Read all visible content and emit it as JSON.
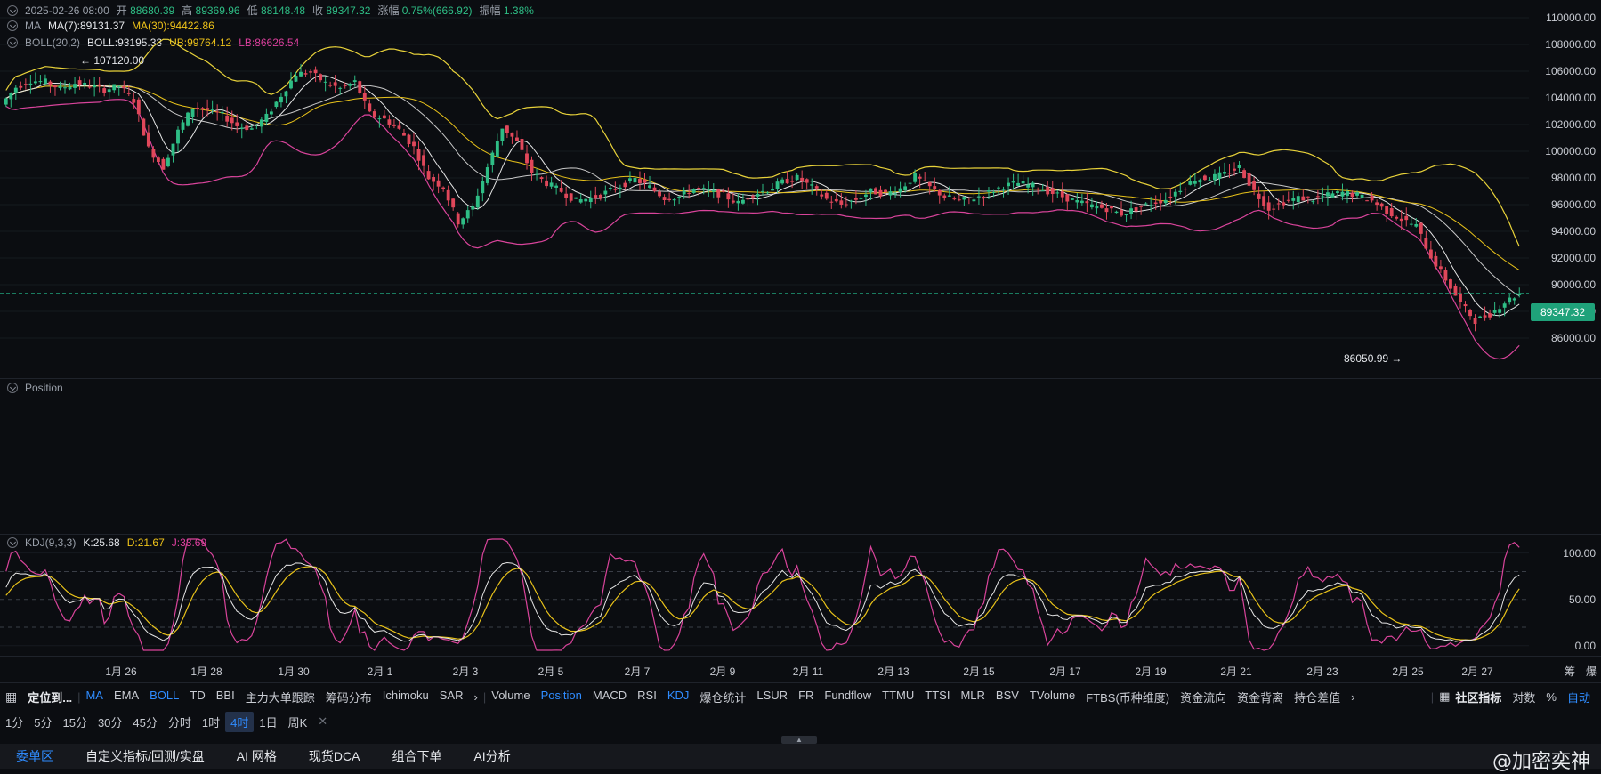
{
  "ohlc": {
    "datetime": "2025-02-26 08:00",
    "open_label": "开",
    "open": "88680.39",
    "high_label": "高",
    "high": "89369.96",
    "low_label": "低",
    "low": "88148.48",
    "close_label": "收",
    "close": "89347.32",
    "change_label": "涨幅",
    "change": "0.75%(666.92)",
    "amp_label": "振幅",
    "amp": "1.38%"
  },
  "ma": {
    "label": "MA",
    "ma7": "MA(7):89131.37",
    "ma30": "MA(30):94422.86"
  },
  "boll": {
    "label": "BOLL(20,2)",
    "mid": "BOLL:93195.33",
    "ub": "UB:99764.12",
    "lb": "LB:86626.54"
  },
  "price_axis": [
    "110000.00",
    "108000.00",
    "106000.00",
    "104000.00",
    "102000.00",
    "100000.00",
    "98000.00",
    "96000.00",
    "94000.00",
    "92000.00",
    "90000.00",
    "88000.00",
    "86000.00"
  ],
  "current_price": "89347.32",
  "high_marker": "107120.00",
  "low_marker": "86050.99",
  "position_pane": {
    "label": "Position"
  },
  "kdj": {
    "label": "KDJ(9,3,3)",
    "k": "K:25.68",
    "d": "D:21.67",
    "j": "J:33.69",
    "axis": [
      "100.00",
      "50.00",
      "0.00"
    ]
  },
  "x_axis": [
    "1月 26",
    "1月 28",
    "1月 30",
    "2月 1",
    "2月 3",
    "2月 5",
    "2月 7",
    "2月 9",
    "2月 11",
    "2月 13",
    "2月 15",
    "2月 17",
    "2月 19",
    "2月 21",
    "2月 23",
    "2月 25",
    "2月 27"
  ],
  "axis_corner": [
    "筹",
    "爆"
  ],
  "indicator_bar": {
    "locate": "定位到...",
    "main_items": [
      "MA",
      "EMA",
      "BOLL",
      "TD",
      "BBI",
      "主力大单跟踪",
      "筹码分布",
      "Ichimoku",
      "SAR"
    ],
    "sub_items": [
      "Volume",
      "Position",
      "MACD",
      "RSI",
      "KDJ",
      "爆仓统计",
      "LSUR",
      "FR",
      "Fundflow",
      "TTMU",
      "TTSI",
      "MLR",
      "BSV",
      "TVolume",
      "FTBS(币种维度)",
      "资金流向",
      "资金背离",
      "持仓差值"
    ],
    "right": [
      "社区指标",
      "对数",
      "%",
      "自动"
    ]
  },
  "intervals": [
    "1分",
    "5分",
    "15分",
    "30分",
    "45分",
    "分时",
    "1时",
    "4时",
    "1日",
    "周K"
  ],
  "active_interval": "4时",
  "bottom_tabs": [
    "委单区",
    "自定义指标/回测/实盘",
    "AI 网格",
    "现货DCA",
    "组合下单",
    "AI分析"
  ],
  "watermark": "@加密奕神",
  "chart_data": {
    "type": "candlestick",
    "close_series": [
      103500,
      104800,
      105300,
      105200,
      104700,
      105100,
      104900,
      104600,
      104900,
      103800,
      100200,
      98800,
      101500,
      103300,
      103100,
      102700,
      101900,
      101700,
      102600,
      104200,
      105800,
      105900,
      105100,
      104700,
      105200,
      102800,
      102400,
      101600,
      100300,
      98000,
      97300,
      94700,
      95800,
      98800,
      101800,
      100700,
      98400,
      97600,
      97000,
      96300,
      96500,
      96900,
      97400,
      97900,
      97300,
      96500,
      96600,
      97200,
      97000,
      96700,
      96100,
      96800,
      97100,
      97700,
      98000,
      97300,
      96400,
      96000,
      96400,
      97000,
      96800,
      97200,
      98100,
      97300,
      96600,
      96300,
      96500,
      96900,
      97400,
      97600,
      97400,
      97000,
      96600,
      96200,
      95900,
      95700,
      95300,
      95700,
      96100,
      96400,
      97200,
      97900,
      98000,
      98300,
      98800,
      97000,
      95700,
      96200,
      96500,
      96400,
      96700,
      96900,
      96700,
      96300,
      95500,
      94900,
      94400,
      92100,
      90400,
      88600,
      87300,
      87800,
      88700,
      89347
    ],
    "price_range": [
      85000,
      111000
    ],
    "kdj_range": [
      -5,
      115
    ],
    "kdj_ticks": [
      0,
      20,
      50,
      80,
      100
    ]
  }
}
